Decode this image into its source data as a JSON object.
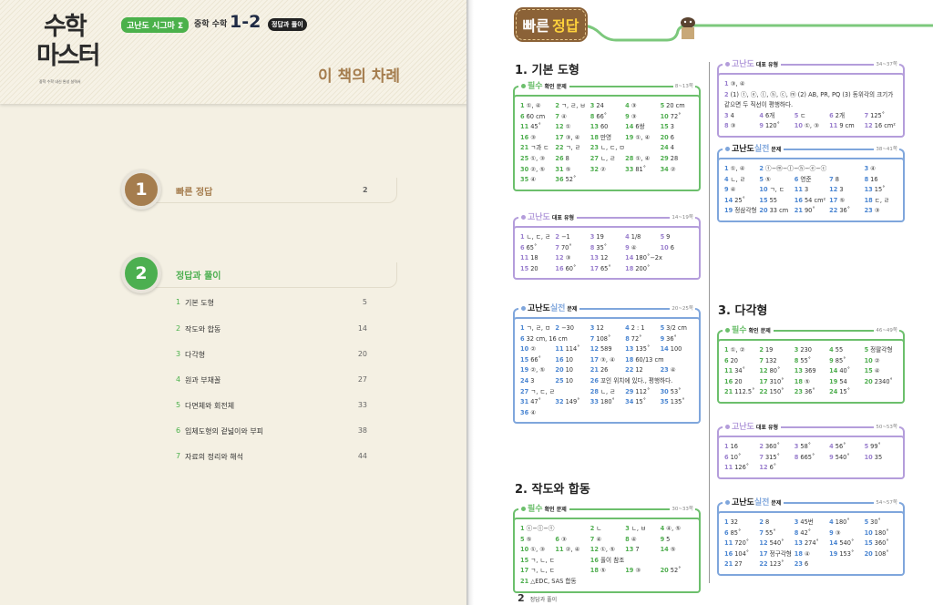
{
  "left": {
    "logo": {
      "line1": "수학",
      "line2": "마스터",
      "tagline": "중학 수학 내신 완성 실력서"
    },
    "series_badge": "고난도 시그마 Σ",
    "grade_label": "중학 수학",
    "grade_number": "1-2",
    "type_badge": "정답과 풀이",
    "title": "이 책의 차례",
    "toc": [
      {
        "number": "1",
        "label": "빠른 정답",
        "page": "2",
        "color": "#a57d4e"
      },
      {
        "number": "2",
        "label": "정답과 풀이",
        "page": "",
        "color": "#4caf50",
        "items": [
          {
            "n": "1",
            "t": "기본 도형",
            "p": "5"
          },
          {
            "n": "2",
            "t": "작도와 합동",
            "p": "14"
          },
          {
            "n": "3",
            "t": "다각형",
            "p": "20"
          },
          {
            "n": "4",
            "t": "원과 부채꼴",
            "p": "27"
          },
          {
            "n": "5",
            "t": "다면체와 회전체",
            "p": "33"
          },
          {
            "n": "6",
            "t": "입체도형의 겉넓이와 부피",
            "p": "38"
          },
          {
            "n": "7",
            "t": "자료의 정리와 해석",
            "p": "44"
          }
        ]
      }
    ]
  },
  "right": {
    "tag": {
      "white": "빠른",
      "yellow": "정답"
    },
    "colors": {
      "pilsu": "#6cbf6c",
      "daepyo": "#b49ddb",
      "siljeon": "#7fa6dc",
      "pilsu_num": "#4fae4f",
      "daepyo_num": "#9a7fce",
      "siljeon_num": "#4b86d2",
      "line": "#7cc87c"
    },
    "sections": [
      {
        "title": "1. 기본 도형",
        "boxes": [
          {
            "kind": "pilsu",
            "label": "필수",
            "sub": "확인 문제",
            "range": "8~13쪽",
            "answers": [
              [
                "1",
                "①, ④"
              ],
              [
                "2",
                "ㄱ, ㄹ, ㅂ"
              ],
              [
                "3",
                "24"
              ],
              [
                "4",
                "③"
              ],
              [
                "5",
                "20 cm"
              ],
              [
                "6",
                "60 cm"
              ],
              [
                "7",
                "④"
              ],
              [
                "8",
                "66˚"
              ],
              [
                "9",
                "③"
              ],
              [
                "10",
                "72˚"
              ],
              [
                "11",
                "45˚"
              ],
              [
                "12",
                "①"
              ],
              [
                "13",
                "60"
              ],
              [
                "14",
                "6쌍"
              ],
              [
                "15",
                "3"
              ],
              [
                "16",
                "③"
              ],
              [
                "17",
                "③, ④"
              ],
              [
                "18",
                "만영"
              ],
              [
                "19",
                "①, ④"
              ],
              [
                "20",
                "6"
              ],
              [
                "21",
                "ㄱ과 ㄷ"
              ],
              [
                "22",
                "ㄱ, ㄹ"
              ],
              [
                "23",
                "ㄴ, ㄷ, ㅁ"
              ],
              [
                "24",
                "4"
              ],
              [
                "25",
                "①, ③"
              ],
              [
                "26",
                "8"
              ],
              [
                "27",
                "ㄴ, ㄹ"
              ],
              [
                "28",
                "①, ④"
              ],
              [
                "29",
                "28"
              ],
              [
                "30",
                "②, ⑤"
              ],
              [
                "31",
                "⑤"
              ],
              [
                "32",
                "②"
              ],
              [
                "33",
                "81˚"
              ],
              [
                "34",
                "②"
              ],
              [
                "35",
                "④"
              ],
              [
                "36",
                "52˚"
              ]
            ]
          },
          {
            "kind": "daepyo",
            "label": "고난도",
            "sub": "대표 유형",
            "range": "14~19쪽",
            "answers": [
              [
                "1",
                "ㄴ, ㄷ, ㄹ"
              ],
              [
                "2",
                "−1"
              ],
              [
                "3",
                "19"
              ],
              [
                "4",
                "1/8"
              ],
              [
                "5",
                "9"
              ],
              [
                "6",
                "65˚"
              ],
              [
                "7",
                "70˚"
              ],
              [
                "8",
                "35˚"
              ],
              [
                "9",
                "④"
              ],
              [
                "10",
                "6"
              ],
              [
                "11",
                "18"
              ],
              [
                "12",
                "③"
              ],
              [
                "13",
                "12"
              ],
              [
                "14",
                "180˚−2x"
              ],
              [
                "15",
                "20"
              ],
              [
                "16",
                "60˚"
              ],
              [
                "17",
                "65˚"
              ],
              [
                "18",
                "200˚"
              ]
            ]
          },
          {
            "kind": "siljeon",
            "label": "고난도",
            "label2": "실전",
            "sub": "문제",
            "range": "20~25쪽",
            "answers": [
              [
                "1",
                "ㄱ, ㄹ, ㅁ"
              ],
              [
                "2",
                "−30"
              ],
              [
                "3",
                "12"
              ],
              [
                "4",
                "2 : 1"
              ],
              [
                "5",
                "3/2 cm"
              ],
              [
                "6",
                "32 cm, 16 cm"
              ],
              [
                "7",
                "108˚"
              ],
              [
                "8",
                "72˚"
              ],
              [
                "9",
                "36˚"
              ],
              [
                "10",
                "②"
              ],
              [
                "11",
                "114˚"
              ],
              [
                "12",
                "589"
              ],
              [
                "13",
                "135˚"
              ],
              [
                "14",
                "100"
              ],
              [
                "15",
                "66˚"
              ],
              [
                "16",
                "10"
              ],
              [
                "17",
                "③, ④"
              ],
              [
                "18",
                "60/13 cm"
              ],
              [
                "19",
                "②, ⑤"
              ],
              [
                "20",
                "10"
              ],
              [
                "21",
                "26"
              ],
              [
                "22",
                "12"
              ],
              [
                "23",
                "④"
              ],
              [
                "24",
                "3"
              ],
              [
                "25",
                "10"
              ],
              [
                "26",
                "꼬인 위치에 있다., 평행하다."
              ],
              [
                "27",
                "ㄱ, ㄷ, ㄹ"
              ],
              [
                "28",
                "ㄴ, ㄹ"
              ],
              [
                "29",
                "112˚"
              ],
              [
                "30",
                "53˚"
              ],
              [
                "31",
                "47˚"
              ],
              [
                "32",
                "149˚"
              ],
              [
                "33",
                "180˚"
              ],
              [
                "34",
                "15˚"
              ],
              [
                "35",
                "135˚"
              ],
              [
                "36",
                "④"
              ]
            ]
          }
        ]
      },
      {
        "title": "2. 작도와 합동",
        "boxes": [
          {
            "kind": "pilsu",
            "label": "필수",
            "sub": "확인 문제",
            "range": "30~33쪽",
            "answers": [
              [
                "1",
                "ⓒ−ⓛ−ⓣ"
              ],
              [
                "2",
                "ㄴ"
              ],
              [
                "3",
                "ㄴ, ㅂ"
              ],
              [
                "4",
                "④, ⑤"
              ],
              [
                "5",
                "⑤"
              ],
              [
                "6",
                "③"
              ],
              [
                "7",
                "④"
              ],
              [
                "8",
                "④"
              ],
              [
                "9",
                "5"
              ],
              [
                "10",
                "①, ③"
              ],
              [
                "11",
                "②, ④"
              ],
              [
                "12",
                "①, ⑤"
              ],
              [
                "13",
                "7"
              ],
              [
                "14",
                "⑤"
              ],
              [
                "15",
                "ㄱ, ㄴ, ㄷ"
              ],
              [
                "16",
                "풀이 참조"
              ],
              [
                "17",
                "ㄱ, ㄴ, ㄷ"
              ],
              [
                "18",
                "⑤"
              ],
              [
                "19",
                "③"
              ],
              [
                "20",
                "52˚"
              ],
              [
                "21",
                "△EDC, SAS 합동"
              ]
            ]
          },
          {
            "kind": "daepyo",
            "label": "고난도",
            "sub": "대표 유형",
            "range": "34~37쪽",
            "answers": [
              [
                "1",
                "③, ④"
              ],
              [
                "2",
                "(1) ⓣ, ⓔ, ⓛ, ⓗ, ⓒ, ⓜ (2) AB, PR, PQ (3) 동위각의 크기가 같으면 두 직선이 평행하다."
              ],
              [
                "3",
                "4"
              ],
              [
                "4",
                "6개"
              ],
              [
                "5",
                "ㄷ"
              ],
              [
                "6",
                "2개"
              ],
              [
                "7",
                "125˚"
              ],
              [
                "8",
                "③"
              ],
              [
                "9",
                "120˚"
              ],
              [
                "10",
                "①, ③"
              ],
              [
                "11",
                "9 cm"
              ],
              [
                "12",
                "16 cm²"
              ]
            ]
          },
          {
            "kind": "siljeon",
            "label": "고난도",
            "label2": "실전",
            "sub": "문제",
            "range": "38~41쪽",
            "answers": [
              [
                "1",
                "①, ④"
              ],
              [
                "2",
                "ⓣ−ⓜ−ⓛ−ⓗ−ⓔ−ⓒ"
              ],
              [
                "3",
                "④"
              ],
              [
                "4",
                "ㄴ, ㄹ"
              ],
              [
                "5",
                "⑤"
              ],
              [
                "6",
                "영준"
              ],
              [
                "7",
                "8"
              ],
              [
                "8",
                "16"
              ],
              [
                "9",
                "④"
              ],
              [
                "10",
                "ㄱ, ㄷ"
              ],
              [
                "11",
                "3"
              ],
              [
                "12",
                "3"
              ],
              [
                "13",
                "15˚"
              ],
              [
                "14",
                "25˚"
              ],
              [
                "15",
                "55"
              ],
              [
                "16",
                "54 cm²"
              ],
              [
                "17",
                "⑤"
              ],
              [
                "18",
                "ㄷ, ㄹ"
              ],
              [
                "19",
                "정삼각형"
              ],
              [
                "20",
                "33 cm"
              ],
              [
                "21",
                "90˚"
              ],
              [
                "22",
                "36˚"
              ],
              [
                "23",
                "③"
              ]
            ]
          }
        ]
      },
      {
        "title": "3. 다각형",
        "boxes": [
          {
            "kind": "pilsu",
            "label": "필수",
            "sub": "확인 문제",
            "range": "46~49쪽",
            "answers": [
              [
                "1",
                "①, ②"
              ],
              [
                "2",
                "19"
              ],
              [
                "3",
                "230"
              ],
              [
                "4",
                "55"
              ],
              [
                "5",
                "정팔각형"
              ],
              [
                "6",
                "20"
              ],
              [
                "7",
                "132"
              ],
              [
                "8",
                "55˚"
              ],
              [
                "9",
                "85˚"
              ],
              [
                "10",
                "②"
              ],
              [
                "11",
                "34˚"
              ],
              [
                "12",
                "80˚"
              ],
              [
                "13",
                "369"
              ],
              [
                "14",
                "40˚"
              ],
              [
                "15",
                "④"
              ],
              [
                "16",
                "20"
              ],
              [
                "17",
                "310˚"
              ],
              [
                "18",
                "⑤"
              ],
              [
                "19",
                "54"
              ],
              [
                "20",
                "2340˚"
              ],
              [
                "21",
                "112.5˚"
              ],
              [
                "22",
                "150˚"
              ],
              [
                "23",
                "36˚"
              ],
              [
                "24",
                "15˚"
              ]
            ]
          },
          {
            "kind": "daepyo",
            "label": "고난도",
            "sub": "대표 유형",
            "range": "50~53쪽",
            "answers": [
              [
                "1",
                "16"
              ],
              [
                "2",
                "360˚"
              ],
              [
                "3",
                "58˚"
              ],
              [
                "4",
                "56˚"
              ],
              [
                "5",
                "99˚"
              ],
              [
                "6",
                "10˚"
              ],
              [
                "7",
                "315˚"
              ],
              [
                "8",
                "665˚"
              ],
              [
                "9",
                "540˚"
              ],
              [
                "10",
                "35"
              ],
              [
                "11",
                "126˚"
              ],
              [
                "12",
                "6˚"
              ]
            ]
          },
          {
            "kind": "siljeon",
            "label": "고난도",
            "label2": "실전",
            "sub": "문제",
            "range": "54~57쪽",
            "answers": [
              [
                "1",
                "32"
              ],
              [
                "2",
                "8"
              ],
              [
                "3",
                "45번"
              ],
              [
                "4",
                "180˚"
              ],
              [
                "5",
                "30˚"
              ],
              [
                "6",
                "85˚"
              ],
              [
                "7",
                "55˚"
              ],
              [
                "8",
                "42˚"
              ],
              [
                "9",
                "③"
              ],
              [
                "10",
                "180˚"
              ],
              [
                "11",
                "720˚"
              ],
              [
                "12",
                "540˚"
              ],
              [
                "13",
                "274˚"
              ],
              [
                "14",
                "540˚"
              ],
              [
                "15",
                "360˚"
              ],
              [
                "16",
                "104˚"
              ],
              [
                "17",
                "정구각형"
              ],
              [
                "18",
                "④"
              ],
              [
                "19",
                "153˚"
              ],
              [
                "20",
                "108˚"
              ],
              [
                "21",
                "27"
              ],
              [
                "22",
                "123˚"
              ],
              [
                "23",
                "6"
              ]
            ]
          }
        ]
      }
    ],
    "footer": {
      "page": "2",
      "label": "정답과 풀이"
    }
  }
}
